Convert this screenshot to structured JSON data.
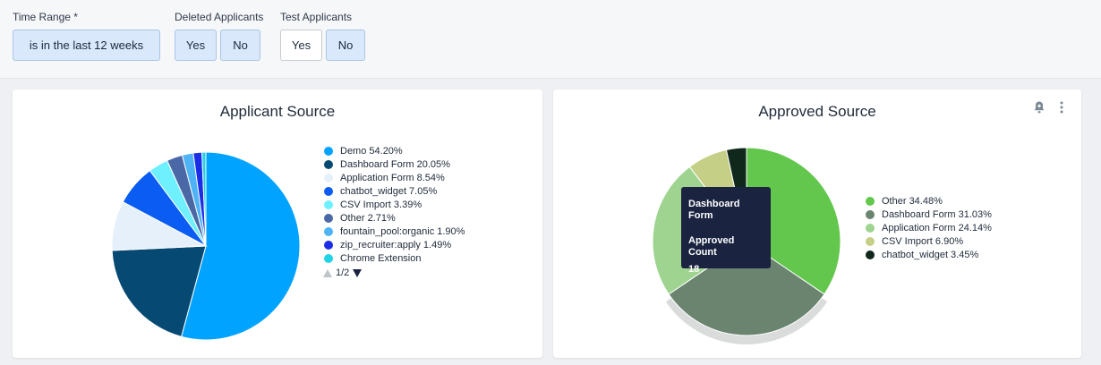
{
  "filters": {
    "time_range": {
      "label": "Time Range *",
      "value": "is in the last 12 weeks"
    },
    "deleted": {
      "label": "Deleted Applicants",
      "yes": "Yes",
      "no": "No"
    },
    "test": {
      "label": "Test Applicants",
      "yes": "Yes",
      "no": "No"
    }
  },
  "colors": {
    "accent": "#d9e9fb",
    "tooltip_bg": "#1a2340"
  },
  "chart_data": [
    {
      "type": "pie",
      "title": "Applicant Source",
      "series": [
        {
          "name": "Demo",
          "label": "Demo 54.20%",
          "value": 54.2,
          "color": "#00a3ff"
        },
        {
          "name": "Dashboard Form",
          "label": "Dashboard Form 20.05%",
          "value": 20.05,
          "color": "#064a74"
        },
        {
          "name": "Application Form",
          "label": "Application Form 8.54%",
          "value": 8.54,
          "color": "#e6f0fb"
        },
        {
          "name": "chatbot_widget",
          "label": "chatbot_widget 7.05%",
          "value": 7.05,
          "color": "#0a5cf2"
        },
        {
          "name": "CSV Import",
          "label": "CSV Import 3.39%",
          "value": 3.39,
          "color": "#6ff0ff"
        },
        {
          "name": "Other",
          "label": "Other 2.71%",
          "value": 2.71,
          "color": "#4a68a6"
        },
        {
          "name": "fountain_pool:organic",
          "label": "fountain_pool:organic 1.90%",
          "value": 1.9,
          "color": "#4db3f5"
        },
        {
          "name": "zip_recruiter:apply",
          "label": "zip_recruiter:apply 1.49%",
          "value": 1.49,
          "color": "#1b2ee6"
        },
        {
          "name": "Chrome Extension",
          "label": "Chrome Extension",
          "value": 0.67,
          "color": "#22d3e6"
        }
      ],
      "legend_page": "1/2"
    },
    {
      "type": "pie",
      "title": "Approved Source",
      "series": [
        {
          "name": "Other",
          "label": "Other 34.48%",
          "value": 34.48,
          "color": "#63c74d"
        },
        {
          "name": "Dashboard Form",
          "label": "Dashboard Form 31.03%",
          "value": 31.03,
          "color": "#6a8470"
        },
        {
          "name": "Application Form",
          "label": "Application Form 24.14%",
          "value": 24.14,
          "color": "#9fd490"
        },
        {
          "name": "CSV Import",
          "label": "CSV Import 6.90%",
          "value": 6.9,
          "color": "#c5cf86"
        },
        {
          "name": "chatbot_widget",
          "label": "chatbot_widget 3.45%",
          "value": 3.45,
          "color": "#10281c"
        }
      ],
      "tooltip": {
        "title": "Dashboard Form",
        "metric": "Approved Count",
        "value": "18"
      },
      "highlighted": "Dashboard Form"
    }
  ]
}
